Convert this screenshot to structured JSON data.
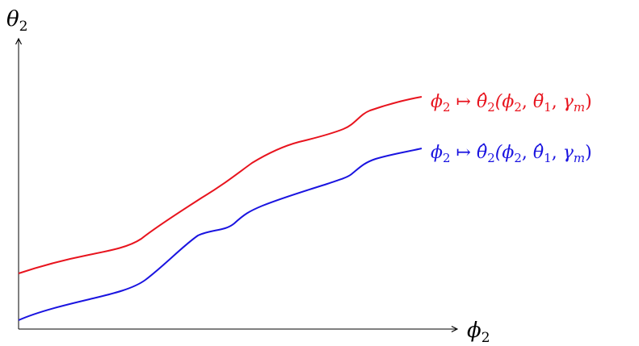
{
  "axes": {
    "y_label": {
      "main": "θ",
      "sub": "2"
    },
    "x_label": {
      "main": "ϕ",
      "sub": "2"
    }
  },
  "curves": [
    {
      "id": "red",
      "color": "#e8141e",
      "label": {
        "phi": "ϕ",
        "phi_sub": "2",
        "maps": " ↦ ",
        "theta": "θ̂",
        "theta_sub": "2",
        "args": "(ϕ",
        "args_sub": "2",
        "comma1": ", ",
        "theta1": "θ̃",
        "theta1_sub": "1",
        "comma2": ", ",
        "gamma": "γ",
        "gamma_sub": "m",
        "close": ")"
      }
    },
    {
      "id": "blue",
      "color": "#1a14e0",
      "label": {
        "phi": "ϕ",
        "phi_sub": "2",
        "maps": " ↦ ",
        "theta": "θ̂",
        "theta_sub": "2",
        "args": "(ϕ",
        "args_sub": "2",
        "comma1": ", ",
        "theta1": "θ̂",
        "theta1_sub": "1",
        "comma2": ", ",
        "gamma": "γ",
        "gamma_sub": "m",
        "close": ")"
      }
    }
  ]
}
